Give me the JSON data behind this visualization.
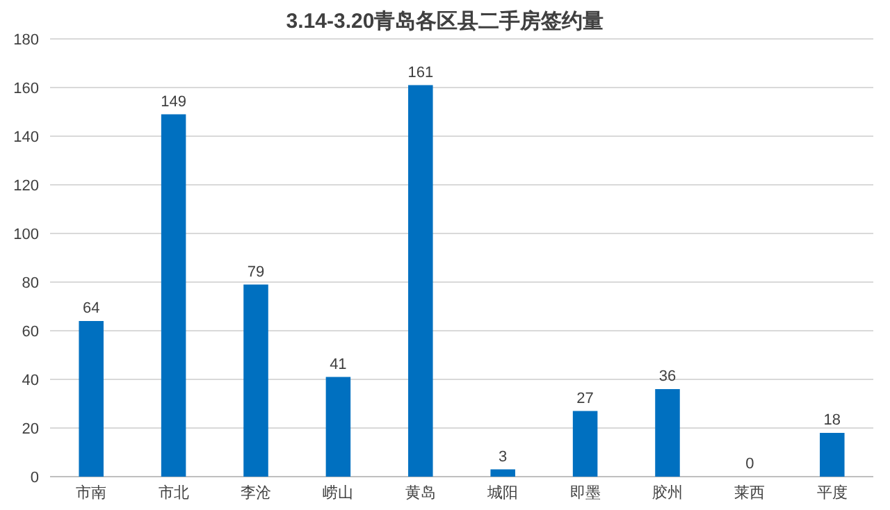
{
  "chart_data": {
    "type": "bar",
    "title": "3.14-3.20青岛各区县二手房签约量",
    "categories": [
      "市南",
      "市北",
      "李沧",
      "崂山",
      "黄岛",
      "城阳",
      "即墨",
      "胶州",
      "莱西",
      "平度"
    ],
    "values": [
      64,
      149,
      79,
      41,
      161,
      3,
      27,
      36,
      0,
      18
    ],
    "color": "#0070c0",
    "ylim": [
      0,
      180
    ],
    "yticks": [
      0,
      20,
      40,
      60,
      80,
      100,
      120,
      140,
      160,
      180
    ],
    "grid": "y",
    "data_labels": true
  }
}
